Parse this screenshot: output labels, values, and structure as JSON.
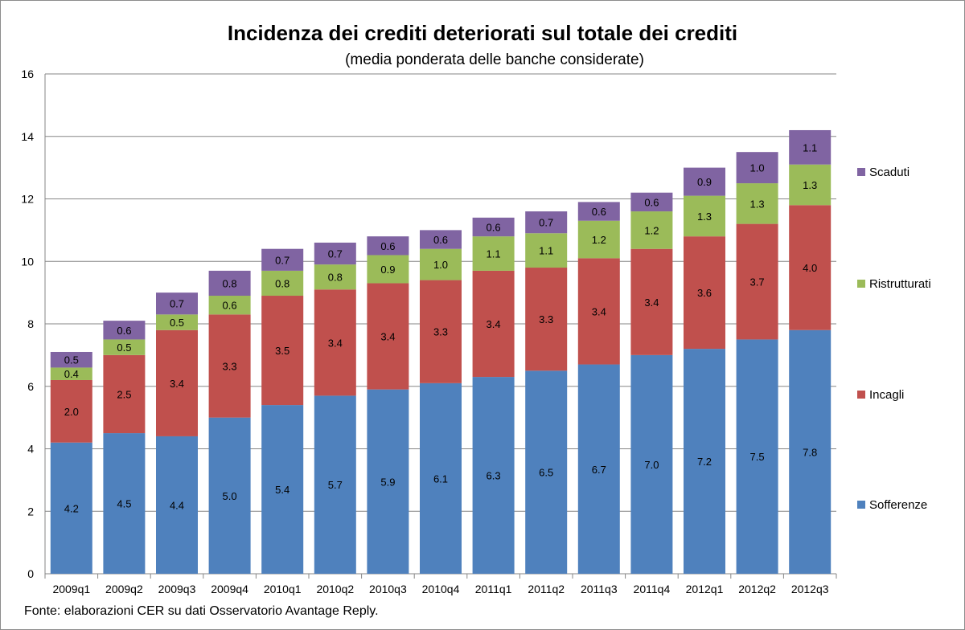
{
  "chart_data": {
    "type": "bar",
    "stacked": true,
    "title": "Incidenza dei crediti deteriorati sul totale dei crediti",
    "subtitle": "(media ponderata delle banche considerate)",
    "source": "Fonte: elaborazioni CER su dati Osservatorio Avantage Reply.",
    "categories": [
      "2009q1",
      "2009q2",
      "2009q3",
      "2009q4",
      "2010q1",
      "2010q2",
      "2010q3",
      "2010q4",
      "2011q1",
      "2011q2",
      "2011q3",
      "2011q4",
      "2012q1",
      "2012q2",
      "2012q3"
    ],
    "series": [
      {
        "name": "Sofferenze",
        "color": "#4f81bd",
        "values": [
          4.2,
          4.5,
          4.4,
          5.0,
          5.4,
          5.7,
          5.9,
          6.1,
          6.3,
          6.5,
          6.7,
          7.0,
          7.2,
          7.5,
          7.8
        ]
      },
      {
        "name": "Incagli",
        "color": "#c0504d",
        "values": [
          2.0,
          2.5,
          3.4,
          3.3,
          3.5,
          3.4,
          3.4,
          3.3,
          3.4,
          3.3,
          3.4,
          3.4,
          3.6,
          3.7,
          4.0
        ]
      },
      {
        "name": "Ristrutturati",
        "color": "#9bbb59",
        "values": [
          0.4,
          0.5,
          0.5,
          0.6,
          0.8,
          0.8,
          0.9,
          1.0,
          1.1,
          1.1,
          1.2,
          1.2,
          1.3,
          1.3,
          1.3
        ]
      },
      {
        "name": "Scaduti",
        "color": "#8064a2",
        "values": [
          0.5,
          0.6,
          0.7,
          0.8,
          0.7,
          0.7,
          0.6,
          0.6,
          0.6,
          0.7,
          0.6,
          0.6,
          0.9,
          1.0,
          1.1
        ]
      }
    ],
    "ylim": [
      0,
      16
    ],
    "yticks": [
      0,
      2,
      4,
      6,
      8,
      10,
      12,
      14,
      16
    ],
    "grid": true,
    "legend_position": "right"
  }
}
